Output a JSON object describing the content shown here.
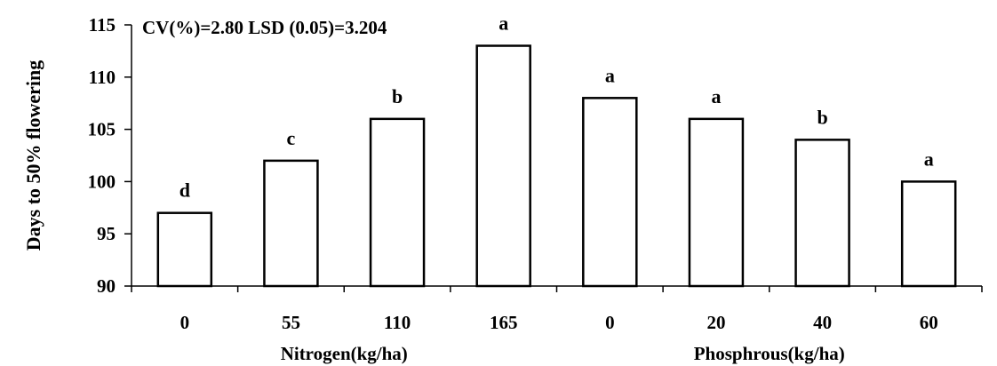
{
  "chart_data": {
    "type": "bar",
    "annotation": "CV(%)=2.80 LSD (0.05)=3.204",
    "ylabel": "Days to 50% flowering",
    "ylim": [
      90,
      115
    ],
    "yticks": [
      90,
      95,
      100,
      105,
      110,
      115
    ],
    "grid": false,
    "categories": [
      "0",
      "55",
      "110",
      "165",
      "0",
      "20",
      "40",
      "60"
    ],
    "values": [
      97,
      102,
      106,
      113,
      108,
      106,
      104,
      100
    ],
    "letters": [
      "d",
      "c",
      "b",
      "a",
      "a",
      "a",
      "b",
      "a"
    ],
    "groups": [
      {
        "label": "Nitrogen(kg/ha)",
        "start": 0,
        "end": 3
      },
      {
        "label": "Phosphrous(kg/ha)",
        "start": 4,
        "end": 7
      }
    ]
  }
}
